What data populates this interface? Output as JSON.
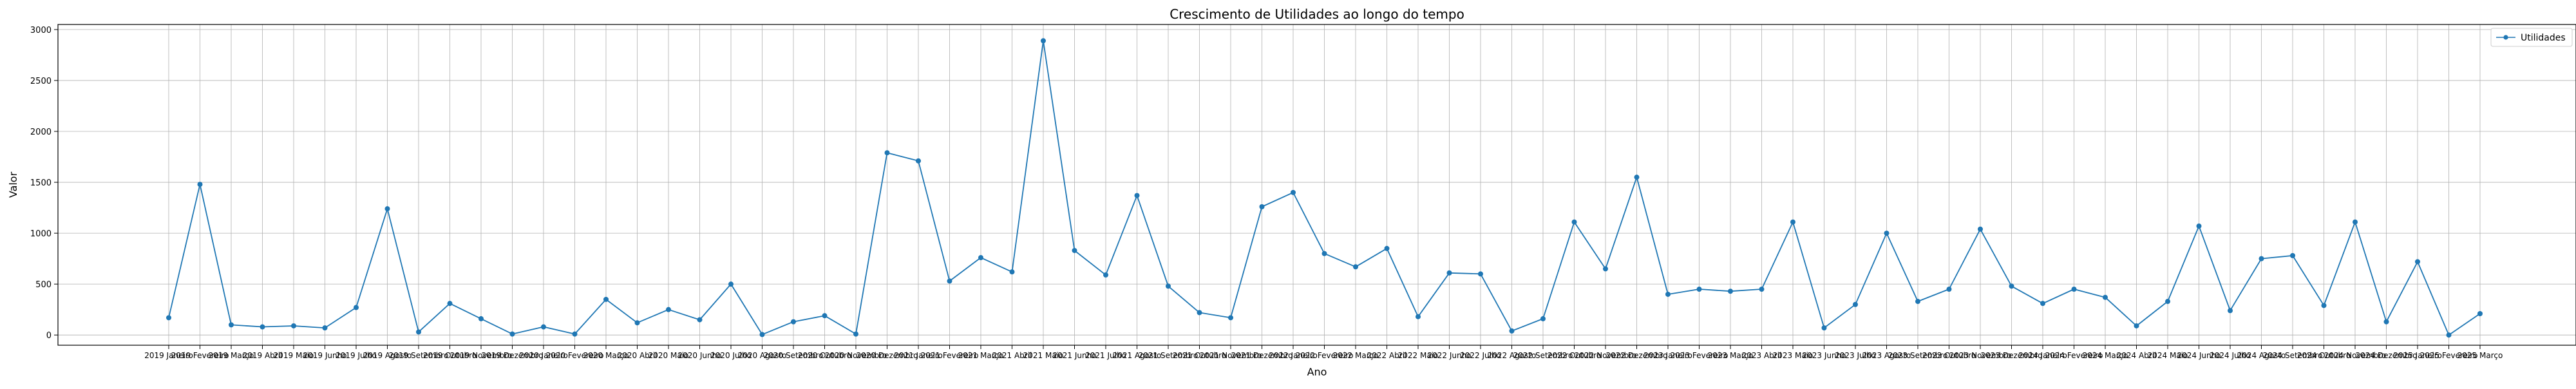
{
  "chart_data": {
    "type": "line",
    "title": "Crescimento de Utilidades ao longo do tempo",
    "xlabel": "Ano",
    "ylabel": "Valor",
    "ylim": [
      -100,
      3050
    ],
    "yticks": [
      0,
      500,
      1000,
      1500,
      2000,
      2500,
      3000
    ],
    "grid": true,
    "legend_position": "top-right",
    "series_color": "#1f77b4",
    "categories": [
      "2019 Janeiro",
      "2019 Fevereiro",
      "2019 Março",
      "2019 Abril",
      "2019 Maio",
      "2019 Junho",
      "2019 Julho",
      "2019 Agosto",
      "2019 Setembro",
      "2019 Outubro",
      "2019 Novembro",
      "2019 Dezembro",
      "2020 Janeiro",
      "2020 Fevereiro",
      "2020 Março",
      "2020 Abril",
      "2020 Maio",
      "2020 Junho",
      "2020 Julho",
      "2020 Agosto",
      "2020 Setembro",
      "2020 Outubro",
      "2020 Novembro",
      "2020 Dezembro",
      "2021 Janeiro",
      "2021 Fevereiro",
      "2021 Março",
      "2021 Abril",
      "2021 Maio",
      "2021 Junho",
      "2021 Julho",
      "2021 Agosto",
      "2021 Setembro",
      "2021 Outubro",
      "2021 Novembro",
      "2021 Dezembro",
      "2022 Janeiro",
      "2022 Fevereiro",
      "2022 Março",
      "2022 Abril",
      "2022 Maio",
      "2022 Junho",
      "2022 Julho",
      "2022 Agosto",
      "2022 Setembro",
      "2022 Outubro",
      "2022 Novembro",
      "2022 Dezembro",
      "2023 Janeiro",
      "2023 Fevereiro",
      "2023 Março",
      "2023 Abril",
      "2023 Maio",
      "2023 Junho",
      "2023 Julho",
      "2023 Agosto",
      "2023 Setembro",
      "2023 Outubro",
      "2023 Novembro",
      "2023 Dezembro",
      "2024 Janeiro",
      "2024 Fevereiro",
      "2024 Março",
      "2024 Abril",
      "2024 Maio",
      "2024 Junho",
      "2024 Julho",
      "2024 Agosto",
      "2024 Setembro",
      "2024 Outubro",
      "2024 Novembro",
      "2024 Dezembro",
      "2025 Janeiro",
      "2025 Fevereiro",
      "2025 Março"
    ],
    "series": [
      {
        "name": "Utilidades",
        "values": [
          170,
          1480,
          100,
          80,
          90,
          70,
          270,
          1240,
          30,
          310,
          160,
          10,
          80,
          10,
          350,
          120,
          250,
          150,
          500,
          5,
          130,
          190,
          10,
          1790,
          1710,
          530,
          760,
          620,
          2890,
          830,
          590,
          1370,
          480,
          220,
          170,
          1260,
          1400,
          800,
          670,
          850,
          180,
          610,
          600,
          40,
          160,
          1110,
          650,
          1550,
          400,
          450,
          430,
          450,
          1110,
          70,
          300,
          1000,
          330,
          450,
          1040,
          480,
          310,
          450,
          370,
          90,
          330,
          1070,
          240,
          750,
          780,
          290,
          1110,
          130,
          720,
          0,
          210
        ]
      }
    ]
  }
}
